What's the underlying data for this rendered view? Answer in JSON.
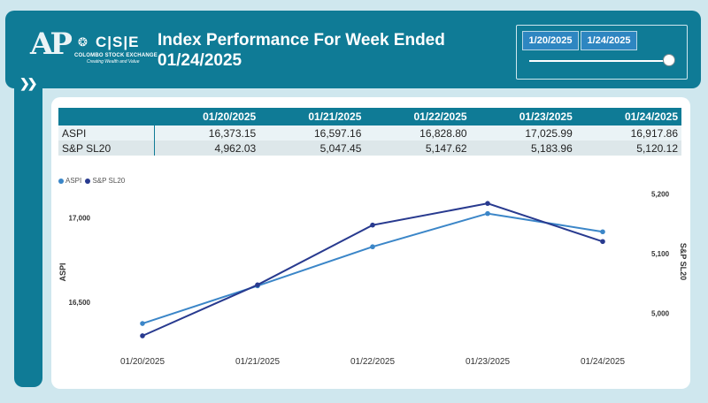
{
  "header": {
    "title_line1": "Index Performance For Week Ended",
    "title_line2": "01/24/2025",
    "logo_text": "AP",
    "cse_letters": "C|S|E",
    "cse_name": "COLOMBO STOCK EXCHANGE",
    "cse_tagline": "Creating Wealth and Value"
  },
  "slicer": {
    "start": "1/20/2025",
    "end": "1/24/2025"
  },
  "table": {
    "columns": [
      "",
      "01/20/2025",
      "01/21/2025",
      "01/22/2025",
      "01/23/2025",
      "01/24/2025"
    ],
    "rows": [
      [
        "ASPI",
        "16,373.15",
        "16,597.16",
        "16,828.80",
        "17,025.99",
        "16,917.86"
      ],
      [
        "S&P SL20",
        "4,962.03",
        "5,047.45",
        "5,147.62",
        "5,183.96",
        "5,120.12"
      ]
    ]
  },
  "colors": {
    "aspi": "#3b86c8",
    "sl20": "#283a8f",
    "header_teal": "#0f7b96"
  },
  "chart_data": {
    "type": "line",
    "x": [
      "01/20/2025",
      "01/21/2025",
      "01/22/2025",
      "01/23/2025",
      "01/24/2025"
    ],
    "series": [
      {
        "name": "ASPI",
        "values": [
          16373.15,
          16597.16,
          16828.8,
          17025.99,
          16917.86
        ],
        "axis": "left"
      },
      {
        "name": "S&P SL20",
        "values": [
          4962.03,
          5047.45,
          5147.62,
          5183.96,
          5120.12
        ],
        "axis": "right"
      }
    ],
    "ylabel": "ASPI",
    "y2label": "S&P SL20",
    "ylim": [
      16300,
      17150
    ],
    "y2lim": [
      4962,
      5202
    ],
    "yticks": [
      16500,
      17000
    ],
    "ytick_labels": [
      "16,500",
      "17,000"
    ],
    "y2ticks": [
      5000,
      5100,
      5200
    ],
    "y2tick_labels": [
      "5,000",
      "5,100",
      "5,200"
    ],
    "legend": "top-left",
    "grid": false
  }
}
